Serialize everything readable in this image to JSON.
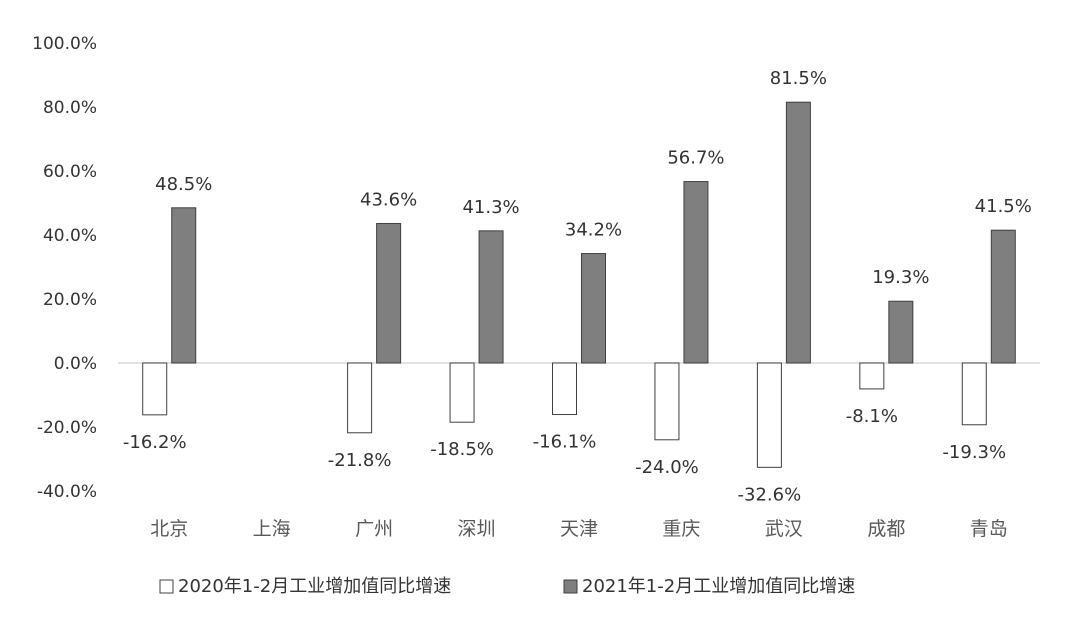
{
  "chart_data": {
    "type": "bar",
    "title": "",
    "xlabel": "",
    "ylabel": "",
    "categories": [
      "北京",
      "上海",
      "广州",
      "深圳",
      "天津",
      "重庆",
      "武汉",
      "成都",
      "青岛"
    ],
    "series": [
      {
        "name": "2020年1-2月工业增加值同比增速",
        "values": [
          -16.2,
          null,
          -21.8,
          -18.5,
          -16.1,
          -24.0,
          -32.6,
          -8.1,
          -19.3
        ],
        "labels": [
          "-16.2%",
          "",
          "-21.8%",
          "-18.5%",
          "-16.1%",
          "-24.0%",
          "-32.6%",
          "-8.1%",
          "-19.3%"
        ],
        "fill": "#ffffff",
        "stroke": "#404040"
      },
      {
        "name": "2021年1-2月工业增加值同比增速",
        "values": [
          48.5,
          null,
          43.6,
          41.3,
          34.2,
          56.7,
          81.5,
          19.3,
          41.5
        ],
        "labels": [
          "48.5%",
          "",
          "43.6%",
          "41.3%",
          "34.2%",
          "56.7%",
          "81.5%",
          "19.3%",
          "41.5%"
        ],
        "fill": "#7f7f7f",
        "stroke": "#404040"
      }
    ],
    "ylim": [
      -40,
      100
    ],
    "yticks": [
      100,
      80,
      60,
      40,
      20,
      0,
      -20,
      -40
    ],
    "ytick_labels": [
      "100.0%",
      "80.0%",
      "60.0%",
      "40.0%",
      "20.0%",
      "0.0%",
      "-20.0%",
      "-40.0%"
    ],
    "grid": false,
    "legend_position": "bottom"
  }
}
